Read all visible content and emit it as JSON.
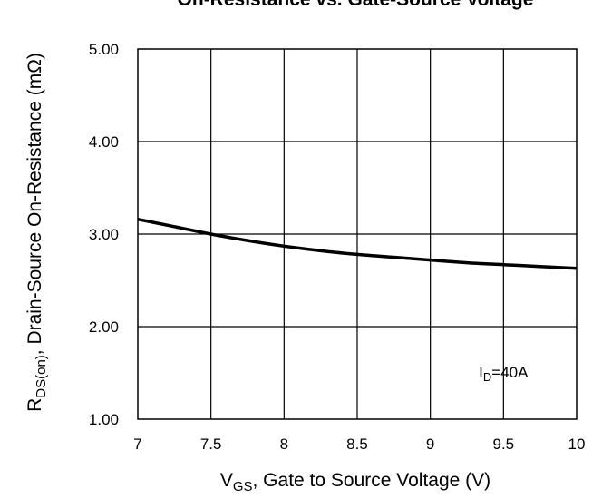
{
  "chart_data": {
    "type": "line",
    "title": "On-Resistance vs. Gate-Source Voltage",
    "xlabel": {
      "main": "V",
      "sub": "GS",
      "rest": ", Gate to Source Voltage (V)"
    },
    "ylabel": {
      "main": "R",
      "sub": "DS(on)",
      "rest": ", Drain-Source On-Resistance (mΩ)"
    },
    "xlim": [
      7,
      10
    ],
    "ylim": [
      1.0,
      5.0
    ],
    "x_ticks": [
      7,
      7.5,
      8,
      8.5,
      9,
      9.5,
      10
    ],
    "x_tick_labels": [
      "7",
      "7.5",
      "8",
      "8.5",
      "9",
      "9.5",
      "10"
    ],
    "y_ticks": [
      1,
      2,
      3,
      4,
      5
    ],
    "y_tick_labels": [
      "1.00",
      "2.00",
      "3.00",
      "4.00",
      "5.00"
    ],
    "grid": true,
    "annotation": {
      "main": "I",
      "sub": "D",
      "rest": "=40A",
      "x": 9.5,
      "y": 1.45
    },
    "series": [
      {
        "color": "#000000",
        "x": [
          7.0,
          7.25,
          7.5,
          7.75,
          8.0,
          8.25,
          8.5,
          8.75,
          9.0,
          9.25,
          9.5,
          9.75,
          10.0
        ],
        "y": [
          3.16,
          3.08,
          3.0,
          2.93,
          2.87,
          2.82,
          2.78,
          2.75,
          2.72,
          2.69,
          2.67,
          2.65,
          2.63
        ]
      }
    ]
  }
}
